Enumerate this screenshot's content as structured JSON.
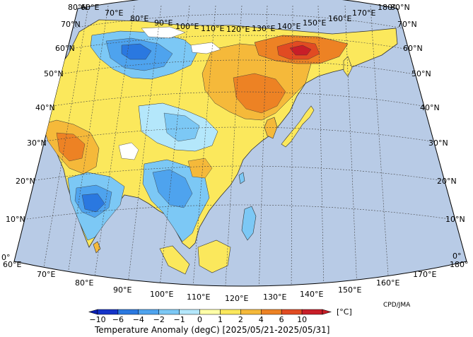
{
  "credit": "CPD/JMA",
  "caption": "Temperature Anomaly (degC) [2025/05/21-2025/05/31]",
  "colorbar": {
    "unit": "[°C]",
    "ticks": [
      "−10",
      "−6",
      "−4",
      "−2",
      "−1",
      "0",
      "1",
      "2",
      "4",
      "6",
      "10"
    ],
    "colors": [
      "#1433c8",
      "#2a78e0",
      "#4ea3ee",
      "#7cc8f5",
      "#b4e7fb",
      "#ffffa8",
      "#fbe85c",
      "#f5b93a",
      "#ed8224",
      "#e14b22",
      "#c81e28"
    ]
  },
  "axes": {
    "top_lon": [
      "60°E",
      "70°E",
      "80°E",
      "90°E",
      "100°E",
      "110°E",
      "120°E",
      "130°E",
      "140°E",
      "150°E",
      "160°E",
      "170°E",
      "180°"
    ],
    "bottom_lon": [
      "60°E",
      "70°E",
      "80°E",
      "90°E",
      "100°E",
      "110°E",
      "120°E",
      "130°E",
      "140°E",
      "150°E",
      "160°E",
      "170°E",
      "180°"
    ],
    "left_lat": [
      "80°N",
      "70°N",
      "60°N",
      "50°N",
      "40°N",
      "30°N",
      "20°N",
      "10°N",
      "0°"
    ],
    "right_lat": [
      "80°N",
      "70°N",
      "60°N",
      "50°N",
      "40°N",
      "30°N",
      "20°N",
      "10°N",
      "0°"
    ]
  },
  "palette": {
    "ocean": "#b8cbe6",
    "land_base": "#fbe85c",
    "no_data": "#ffffff"
  }
}
